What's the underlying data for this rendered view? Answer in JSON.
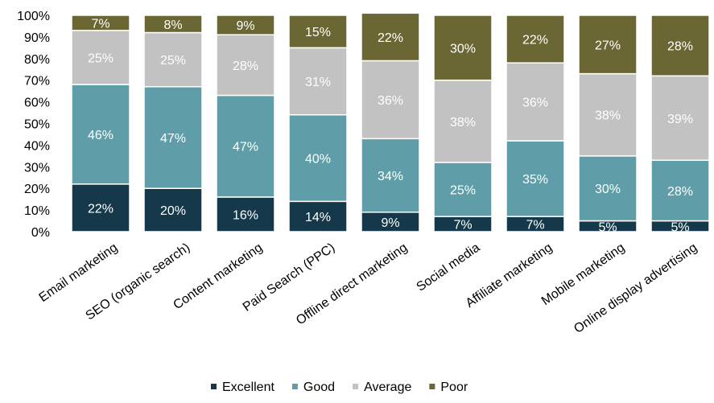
{
  "chart_data": {
    "type": "bar",
    "stacked": true,
    "percent_stacked": true,
    "title": "",
    "xlabel": "",
    "ylabel": "",
    "ylim": [
      0,
      100
    ],
    "y_ticks": [
      "0%",
      "10%",
      "20%",
      "30%",
      "40%",
      "50%",
      "60%",
      "70%",
      "80%",
      "90%",
      "100%"
    ],
    "grid": false,
    "legend_position": "bottom",
    "categories": [
      "Email marketing",
      "SEO (organic search)",
      "Content marketing",
      "Paid Search (PPC)",
      "Offline direct marketing",
      "Social media",
      "Affiliate marketing",
      "Mobile marketing",
      "Online display advertising"
    ],
    "series": [
      {
        "name": "Excellent",
        "color": "#15394a",
        "label_color": "#ffffff",
        "values": [
          22,
          20,
          16,
          14,
          9,
          7,
          7,
          5,
          5
        ]
      },
      {
        "name": "Good",
        "color": "#5f9ea8",
        "label_color": "#ffffff",
        "values": [
          46,
          47,
          47,
          40,
          34,
          25,
          35,
          30,
          28
        ]
      },
      {
        "name": "Average",
        "color": "#c2c2c2",
        "label_color": "#ffffff",
        "values": [
          25,
          25,
          28,
          31,
          36,
          38,
          36,
          38,
          39
        ]
      },
      {
        "name": "Poor",
        "color": "#6b6734",
        "label_color": "#ffffff",
        "values": [
          7,
          8,
          9,
          15,
          22,
          30,
          22,
          27,
          28
        ]
      }
    ],
    "data_labels": [
      [
        "22%",
        "20%",
        "16%",
        "14%",
        "9%",
        "7%",
        "7%",
        "5%",
        "5%"
      ],
      [
        "46%",
        "47%",
        "47%",
        "40%",
        "34%",
        "25%",
        "35%",
        "30%",
        "28%"
      ],
      [
        "25%",
        "25%",
        "28%",
        "31%",
        "36%",
        "38%",
        "36%",
        "38%",
        "39%"
      ],
      [
        "7%",
        "8%",
        "9%",
        "15%",
        "22%",
        "30%",
        "22%",
        "27%",
        "28%"
      ]
    ]
  }
}
